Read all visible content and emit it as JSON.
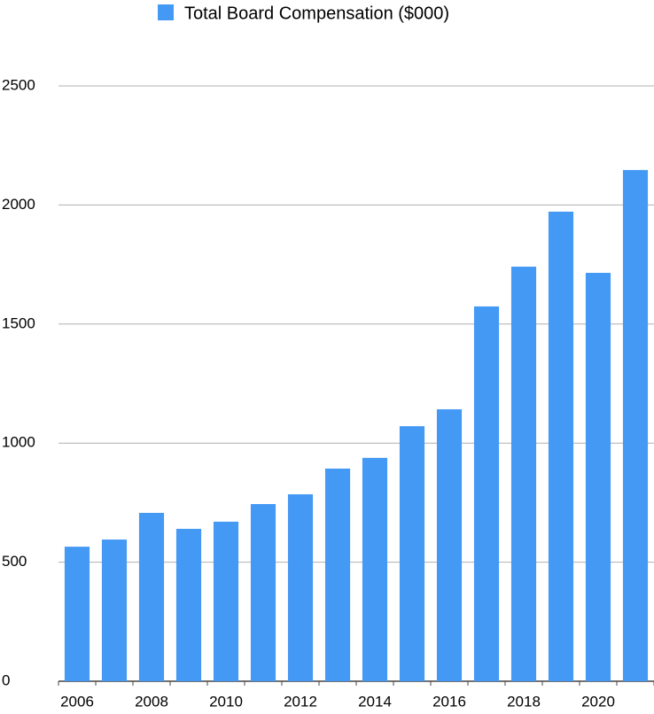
{
  "chart_data": {
    "type": "bar",
    "categories": [
      "2006",
      null,
      "2008",
      null,
      "2010",
      null,
      "2012",
      null,
      "2014",
      null,
      "2016",
      null,
      "2018",
      null,
      "2020",
      null
    ],
    "series": [
      {
        "name": "Total Board Compensation ($000)",
        "color": "#4499f5",
        "values": [
          565,
          595,
          707,
          640,
          670,
          744,
          785,
          893,
          938,
          1071,
          1142,
          1574,
          1741,
          1972,
          1715,
          2147
        ]
      }
    ],
    "ylim": [
      0,
      2500
    ],
    "yticks": [
      0,
      500,
      1000,
      1500,
      2000,
      2500
    ],
    "grid": true,
    "legend": "top"
  }
}
